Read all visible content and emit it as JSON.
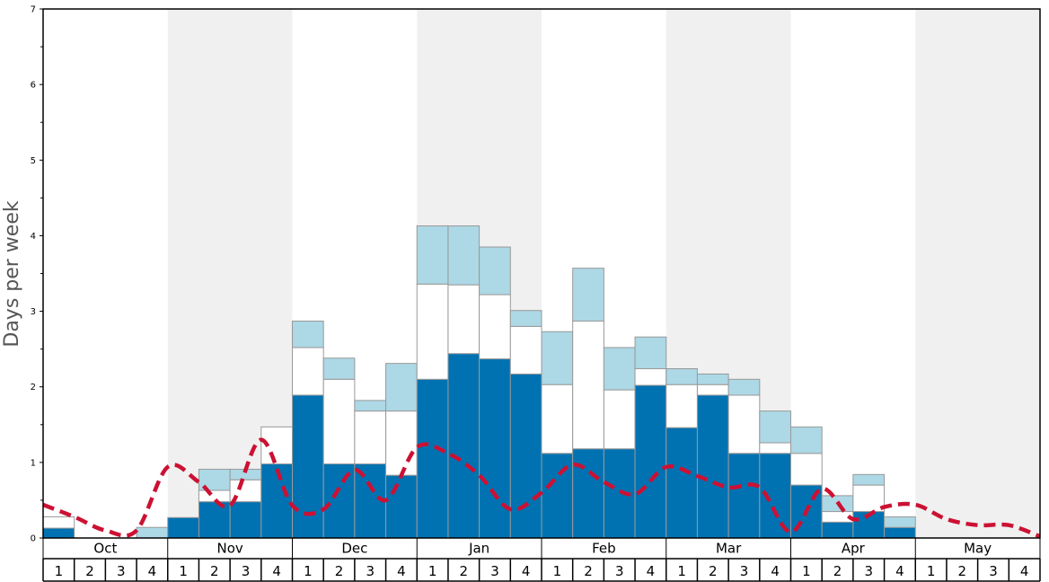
{
  "chart_data": {
    "type": "bar",
    "ylabel": "Days per week",
    "ylim": [
      0,
      7
    ],
    "y_ticks": [
      "0",
      "1",
      "2",
      "3",
      "4",
      "5",
      "6",
      "7"
    ],
    "months": [
      "Oct",
      "Nov",
      "Dec",
      "Jan",
      "Feb",
      "Mar",
      "Apr",
      "May"
    ],
    "week_labels": [
      "1",
      "2",
      "3",
      "4"
    ],
    "shaded_months": [
      "Nov",
      "Jan",
      "Mar",
      "May"
    ],
    "colors": {
      "dark_segment": "#0072b2",
      "white_segment": "#ffffff",
      "light_segment": "#add8e6",
      "dashed_line": "#cc1133",
      "shade": "#f0f0f0",
      "bar_outline": "#999999"
    },
    "series": [
      {
        "values": [
          0.13,
          0,
          0,
          0,
          0.27,
          0.48,
          0.48,
          0.98,
          1.89,
          0.98,
          0.98,
          0.83,
          2.1,
          2.44,
          2.37,
          2.17,
          1.12,
          1.18,
          1.18,
          2.02,
          1.46,
          1.89,
          1.12,
          1.12,
          0.7,
          0.21,
          0.35,
          0.14,
          0,
          0,
          0,
          0
        ]
      },
      {
        "values": [
          0.15,
          0,
          0,
          0,
          0,
          0.15,
          0.29,
          0.49,
          0.63,
          1.12,
          0.7,
          0.85,
          1.26,
          0.91,
          0.85,
          0.63,
          0.91,
          1.69,
          0.78,
          0.22,
          0.57,
          0.14,
          0.77,
          0.14,
          0.42,
          0.14,
          0.35,
          0,
          0,
          0,
          0,
          0
        ]
      },
      {
        "values": [
          0,
          0,
          0,
          0.14,
          0,
          0.28,
          0.14,
          0,
          0.35,
          0.28,
          0.14,
          0.63,
          0.77,
          0.78,
          0.63,
          0.21,
          0.7,
          0.7,
          0.56,
          0.42,
          0.21,
          0.14,
          0.21,
          0.42,
          0.35,
          0.21,
          0.14,
          0.14,
          0,
          0,
          0,
          0
        ]
      },
      {
        "values": [
          0.44,
          0.28,
          0.1,
          0.1,
          0.94,
          0.74,
          0.43,
          1.3,
          0.43,
          0.38,
          0.9,
          0.5,
          1.2,
          1.12,
          0.83,
          0.38,
          0.6,
          0.97,
          0.74,
          0.58,
          0.94,
          0.82,
          0.67,
          0.67,
          0.08,
          0.65,
          0.25,
          0.41,
          0.44,
          0.25,
          0.17,
          0.17,
          0.02
        ]
      }
    ]
  }
}
